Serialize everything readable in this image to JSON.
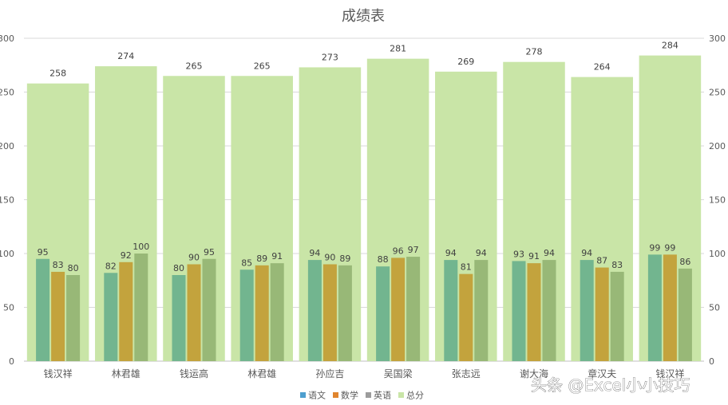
{
  "chart_data": {
    "type": "bar",
    "title": "成绩表",
    "categories": [
      "钱汉祥",
      "林君雄",
      "钱运高",
      "林君雄",
      "孙应吉",
      "吴国梁",
      "张志远",
      "谢大海",
      "章汉夫",
      "钱汉祥"
    ],
    "series": [
      {
        "name": "语文",
        "values": [
          95,
          82,
          80,
          85,
          94,
          88,
          94,
          93,
          94,
          99
        ],
        "color": "#72b58f"
      },
      {
        "name": "数学",
        "values": [
          83,
          92,
          90,
          89,
          90,
          96,
          81,
          91,
          87,
          99
        ],
        "color": "#c3a33d"
      },
      {
        "name": "英语",
        "values": [
          80,
          100,
          95,
          91,
          89,
          97,
          94,
          94,
          83,
          86
        ],
        "color": "#98b877"
      },
      {
        "name": "总分",
        "values": [
          258,
          274,
          265,
          265,
          273,
          281,
          269,
          278,
          264,
          284
        ],
        "color": "#c9e5a7"
      }
    ],
    "legend_colors": [
      "#4e9fcf",
      "#e0852e",
      "#9c9c9c",
      "#c9e5a7"
    ],
    "ylim": [
      0,
      300
    ],
    "yticks": [
      "0",
      "50",
      "100",
      "150",
      "200",
      "250",
      "300"
    ],
    "grid": true,
    "legend": "bottom",
    "secondary_axis": true
  },
  "watermark": "头条 @Excel小小技巧"
}
